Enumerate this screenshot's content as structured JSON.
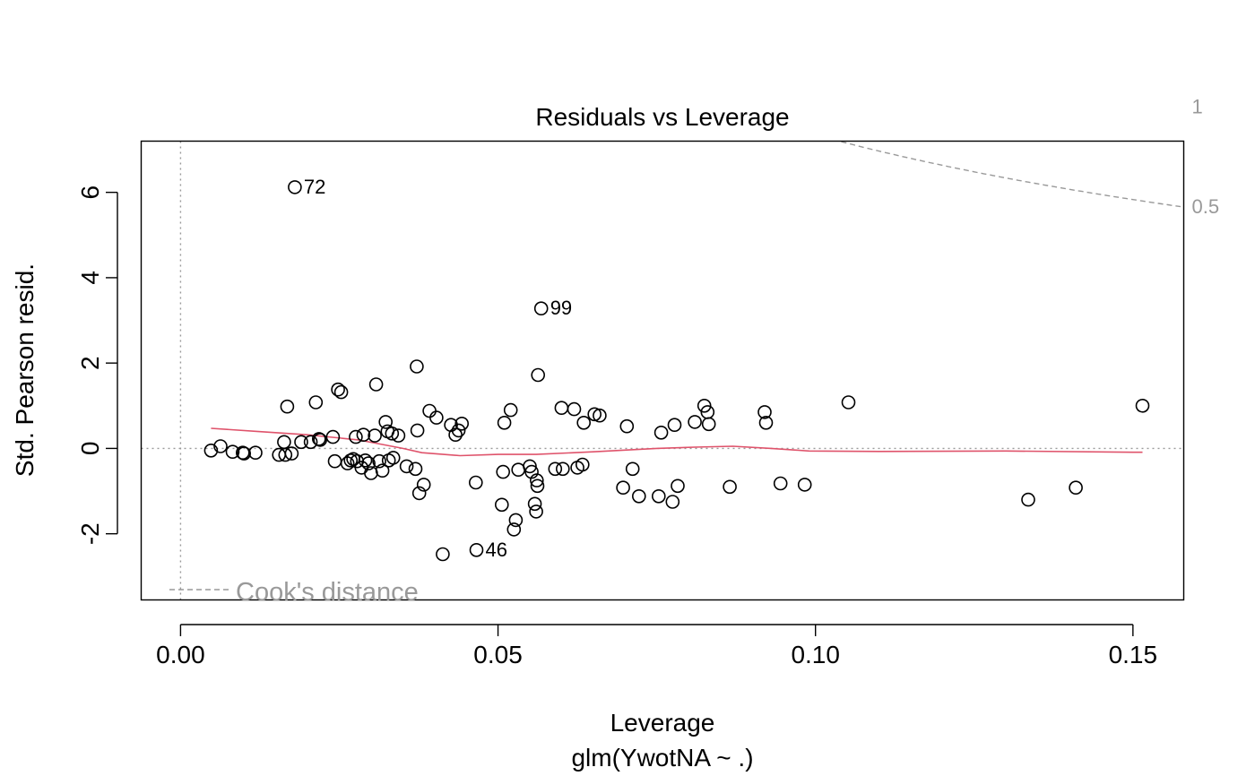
{
  "chart_data": {
    "type": "scatter",
    "title": "Residuals vs Leverage",
    "xlabel": "Leverage",
    "subtitle": "glm(YwotNA ~ .)",
    "ylabel": "Std. Pearson resid.",
    "xlim": [
      -0.0062,
      0.158
    ],
    "ylim": [
      -3.55,
      7.2
    ],
    "x_ticks": [
      0.0,
      0.05,
      0.1,
      0.15
    ],
    "x_tick_labels": [
      "0.00",
      "0.05",
      "0.10",
      "0.15"
    ],
    "y_ticks": [
      -2,
      0,
      2,
      4,
      6
    ],
    "y_tick_labels": [
      "-2",
      "0",
      "2",
      "4",
      "6"
    ],
    "colors": {
      "points": "#000000",
      "smoother": "#DF536B",
      "reference": "#999999",
      "frame": "#000000"
    },
    "points": [
      {
        "x": 0.0048,
        "y": -0.05
      },
      {
        "x": 0.0063,
        "y": 0.05
      },
      {
        "x": 0.0082,
        "y": -0.08
      },
      {
        "x": 0.0098,
        "y": -0.1
      },
      {
        "x": 0.01,
        "y": -0.12
      },
      {
        "x": 0.0118,
        "y": -0.1
      },
      {
        "x": 0.0155,
        "y": -0.15
      },
      {
        "x": 0.0163,
        "y": 0.15
      },
      {
        "x": 0.0165,
        "y": -0.15
      },
      {
        "x": 0.0168,
        "y": 0.98
      },
      {
        "x": 0.0175,
        "y": -0.12
      },
      {
        "x": 0.018,
        "y": 6.12,
        "label": "72"
      },
      {
        "x": 0.019,
        "y": 0.15
      },
      {
        "x": 0.0205,
        "y": 0.15
      },
      {
        "x": 0.0213,
        "y": 1.08
      },
      {
        "x": 0.0218,
        "y": 0.22
      },
      {
        "x": 0.022,
        "y": 0.2
      },
      {
        "x": 0.024,
        "y": 0.27
      },
      {
        "x": 0.0243,
        "y": -0.3
      },
      {
        "x": 0.0248,
        "y": 1.38
      },
      {
        "x": 0.0253,
        "y": 1.32
      },
      {
        "x": 0.0263,
        "y": -0.35
      },
      {
        "x": 0.0268,
        "y": -0.28
      },
      {
        "x": 0.0272,
        "y": -0.25
      },
      {
        "x": 0.0276,
        "y": 0.27
      },
      {
        "x": 0.0278,
        "y": -0.3
      },
      {
        "x": 0.0285,
        "y": -0.45
      },
      {
        "x": 0.0288,
        "y": 0.32
      },
      {
        "x": 0.0291,
        "y": -0.28
      },
      {
        "x": 0.0296,
        "y": -0.35
      },
      {
        "x": 0.03,
        "y": -0.58
      },
      {
        "x": 0.0306,
        "y": 0.3
      },
      {
        "x": 0.0308,
        "y": 1.5
      },
      {
        "x": 0.0313,
        "y": -0.3
      },
      {
        "x": 0.0318,
        "y": -0.52
      },
      {
        "x": 0.0323,
        "y": 0.62
      },
      {
        "x": 0.0326,
        "y": 0.4
      },
      {
        "x": 0.0328,
        "y": -0.28
      },
      {
        "x": 0.0333,
        "y": 0.35
      },
      {
        "x": 0.0335,
        "y": -0.22
      },
      {
        "x": 0.0343,
        "y": 0.3
      },
      {
        "x": 0.0356,
        "y": -0.42
      },
      {
        "x": 0.037,
        "y": -0.48
      },
      {
        "x": 0.0372,
        "y": 1.92
      },
      {
        "x": 0.0373,
        "y": 0.42
      },
      {
        "x": 0.0376,
        "y": -1.05
      },
      {
        "x": 0.0383,
        "y": -0.85
      },
      {
        "x": 0.0392,
        "y": 0.88
      },
      {
        "x": 0.0403,
        "y": 0.72
      },
      {
        "x": 0.0413,
        "y": -2.48
      },
      {
        "x": 0.0426,
        "y": 0.55
      },
      {
        "x": 0.0433,
        "y": 0.32
      },
      {
        "x": 0.0438,
        "y": 0.42
      },
      {
        "x": 0.0443,
        "y": 0.58
      },
      {
        "x": 0.0465,
        "y": -0.8
      },
      {
        "x": 0.0466,
        "y": -2.38,
        "label": "46"
      },
      {
        "x": 0.0506,
        "y": -1.32
      },
      {
        "x": 0.0508,
        "y": -0.55
      },
      {
        "x": 0.051,
        "y": 0.6
      },
      {
        "x": 0.052,
        "y": 0.9
      },
      {
        "x": 0.0525,
        "y": -1.9
      },
      {
        "x": 0.0528,
        "y": -1.68
      },
      {
        "x": 0.0532,
        "y": -0.5
      },
      {
        "x": 0.055,
        "y": -0.42
      },
      {
        "x": 0.0553,
        "y": -0.55
      },
      {
        "x": 0.0558,
        "y": -1.3
      },
      {
        "x": 0.056,
        "y": -1.48
      },
      {
        "x": 0.0561,
        "y": -0.75
      },
      {
        "x": 0.0562,
        "y": -0.88
      },
      {
        "x": 0.0563,
        "y": 1.72
      },
      {
        "x": 0.0568,
        "y": 3.28,
        "label": "99"
      },
      {
        "x": 0.059,
        "y": -0.48
      },
      {
        "x": 0.06,
        "y": 0.95
      },
      {
        "x": 0.0602,
        "y": -0.48
      },
      {
        "x": 0.062,
        "y": 0.92
      },
      {
        "x": 0.0625,
        "y": -0.45
      },
      {
        "x": 0.0633,
        "y": -0.38
      },
      {
        "x": 0.0635,
        "y": 0.6
      },
      {
        "x": 0.0652,
        "y": 0.8
      },
      {
        "x": 0.066,
        "y": 0.77
      },
      {
        "x": 0.0697,
        "y": -0.92
      },
      {
        "x": 0.0703,
        "y": 0.52
      },
      {
        "x": 0.0712,
        "y": -0.48
      },
      {
        "x": 0.0722,
        "y": -1.12
      },
      {
        "x": 0.0753,
        "y": -1.12
      },
      {
        "x": 0.0757,
        "y": 0.37
      },
      {
        "x": 0.0775,
        "y": -1.25
      },
      {
        "x": 0.0778,
        "y": 0.55
      },
      {
        "x": 0.0783,
        "y": -0.88
      },
      {
        "x": 0.081,
        "y": 0.62
      },
      {
        "x": 0.0825,
        "y": 1.0
      },
      {
        "x": 0.083,
        "y": 0.85
      },
      {
        "x": 0.0832,
        "y": 0.57
      },
      {
        "x": 0.0865,
        "y": -0.9
      },
      {
        "x": 0.092,
        "y": 0.85
      },
      {
        "x": 0.0922,
        "y": 0.6
      },
      {
        "x": 0.0945,
        "y": -0.82
      },
      {
        "x": 0.0983,
        "y": -0.85
      },
      {
        "x": 0.1052,
        "y": 1.08
      },
      {
        "x": 0.1335,
        "y": -1.2
      },
      {
        "x": 0.141,
        "y": -0.92
      },
      {
        "x": 0.1515,
        "y": 1.0
      }
    ],
    "smoother": {
      "x": [
        0.0048,
        0.012,
        0.02,
        0.028,
        0.035,
        0.038,
        0.044,
        0.05,
        0.056,
        0.065,
        0.075,
        0.081,
        0.087,
        0.093,
        0.099,
        0.11,
        0.13,
        0.15,
        0.1515
      ],
      "y": [
        0.47,
        0.4,
        0.32,
        0.2,
        0.0,
        -0.1,
        -0.17,
        -0.14,
        -0.14,
        -0.08,
        0.0,
        0.03,
        0.05,
        0.0,
        -0.06,
        -0.07,
        -0.06,
        -0.09,
        -0.09
      ]
    },
    "cooks_levels": [
      0.5,
      1
    ],
    "cooks_contour_labels": [
      "0.5",
      "1"
    ],
    "cooks_n_params": 12,
    "legend": {
      "label": "Cook's distance",
      "position": "bottom-left"
    }
  }
}
